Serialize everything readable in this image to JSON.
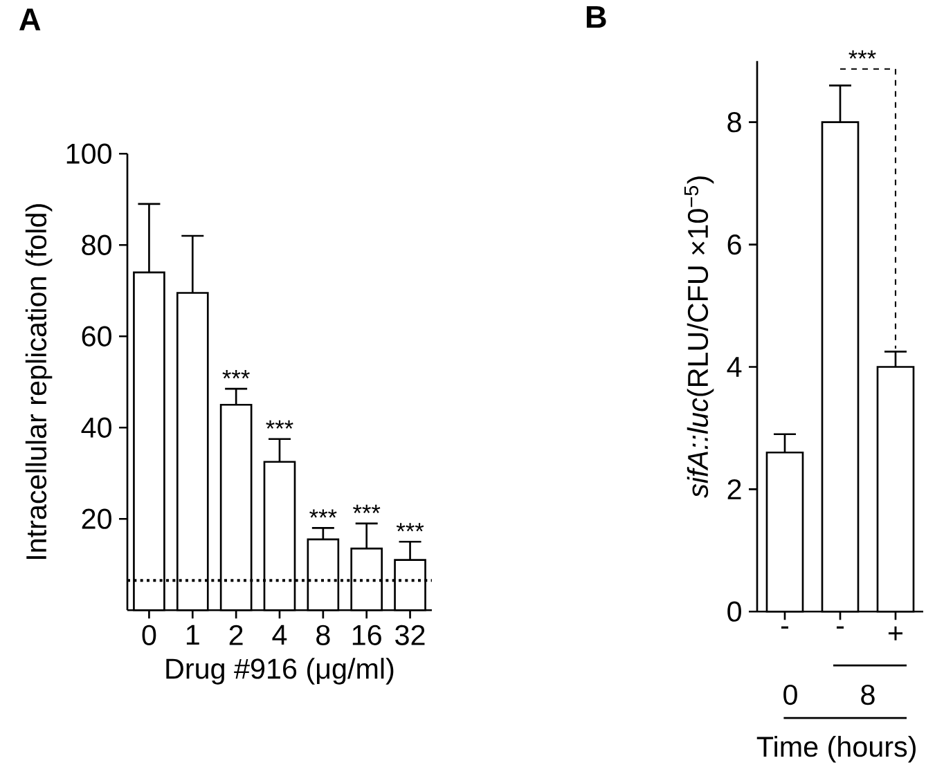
{
  "chart_data": [
    {
      "type": "bar",
      "title": "A",
      "xlabel": "Drug #916 (μg/ml)",
      "ylabel": "Intracellular replication (fold)",
      "categories": [
        "0",
        "1",
        "2",
        "4",
        "8",
        "16",
        "32"
      ],
      "values": [
        74,
        69.5,
        45,
        32.5,
        15.5,
        13.5,
        11
      ],
      "errors": [
        15,
        12.5,
        3.5,
        5,
        2.5,
        5.5,
        4
      ],
      "color": "#ffffff",
      "ylim": [
        0,
        100
      ],
      "yticks": [
        20,
        40,
        60,
        80,
        100
      ],
      "ref_lines": [
        {
          "axis": "y",
          "value": 6.5,
          "line_style": "dotted",
          "color": "#000000"
        }
      ],
      "annotations": [
        {
          "text": "***",
          "x": "2",
          "y": 48.5
        },
        {
          "text": "***",
          "x": "4",
          "y": 37.5
        },
        {
          "text": "***",
          "x": "8",
          "y": 18
        },
        {
          "text": "***",
          "x": "16",
          "y": 19
        },
        {
          "text": "***",
          "x": "32",
          "y": 15
        }
      ]
    },
    {
      "type": "bar",
      "title": "B",
      "xlabel": "Time (hours)",
      "ylabel": "*sifA::luc*(RLU/CFU ×10$^{−5}$)",
      "categories": [
        "-",
        "-",
        "+"
      ],
      "values": [
        2.6,
        8.0,
        4.0
      ],
      "errors": [
        0.3,
        0.6,
        0.25
      ],
      "color": "#ffffff",
      "ylim": [
        0,
        9
      ],
      "yticks": [
        0,
        2,
        4,
        6,
        8
      ],
      "annotations": [
        "***",
        "0",
        "8"
      ]
    }
  ]
}
